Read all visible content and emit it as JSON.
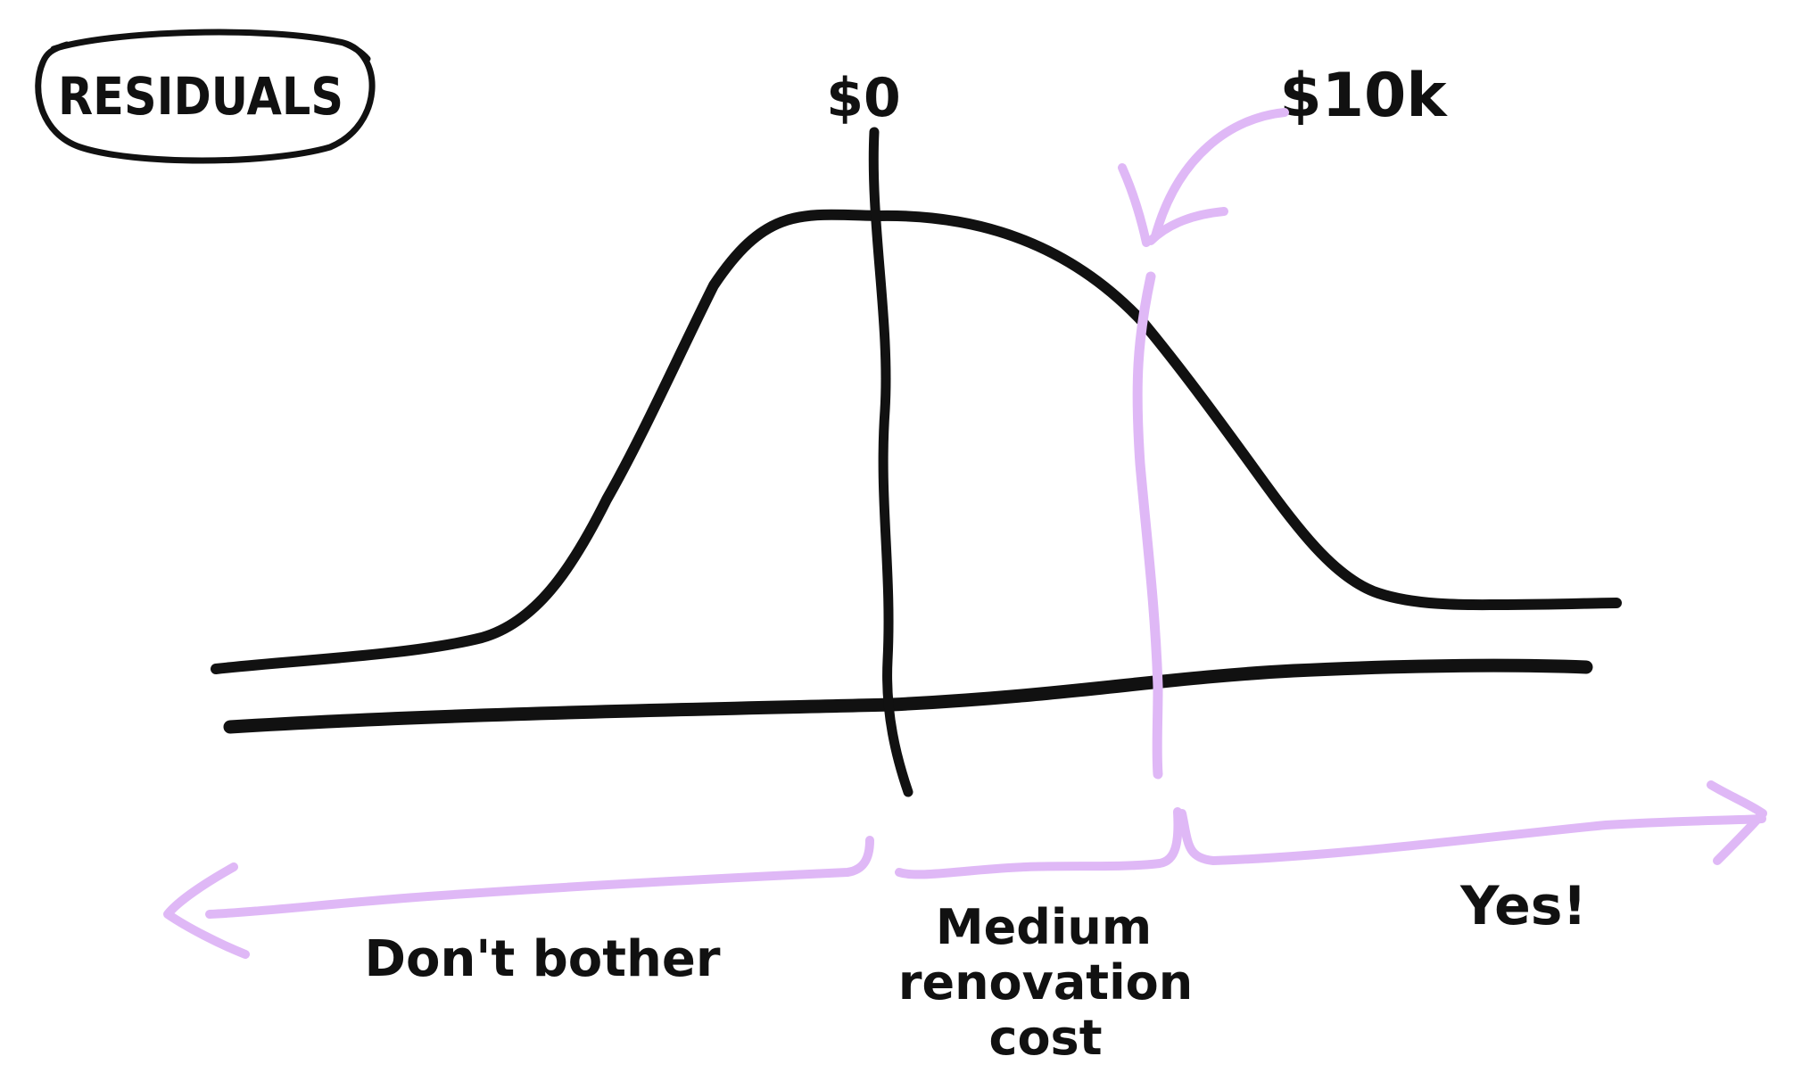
{
  "badge": {
    "label": "RESIDUALS"
  },
  "axis_labels": {
    "zero": "$0",
    "ten_k": "$10k"
  },
  "zones": {
    "left": "Don't bother",
    "middle_line1": "Medium",
    "middle_line2": "renovation",
    "middle_line3": "cost",
    "right": "Yes!"
  },
  "colors": {
    "ink": "#111111",
    "accent": "#dfb8f6"
  }
}
